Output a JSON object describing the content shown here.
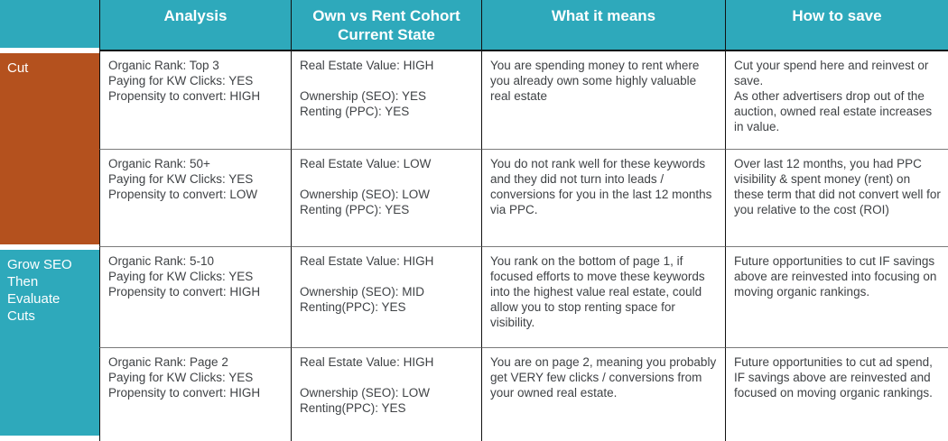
{
  "colors": {
    "header_teal": "#2ea9bb",
    "group_orange": "#b4511e",
    "group_teal": "#2ea9bb",
    "header_text": "#ffffff",
    "body_text": "#3f4245",
    "border_dark": "#111111",
    "border_gray": "#7a7a7a"
  },
  "table": {
    "headers": [
      "Analysis",
      "Own vs Rent Cohort Current State",
      "What it means",
      "How to save"
    ],
    "row_groups": [
      {
        "label": "Cut"
      },
      {
        "label": "Grow SEO\nThen\nEvaluate\nCuts"
      }
    ],
    "rows": [
      {
        "analysis": "Organic Rank: Top 3\nPaying for KW Clicks: YES\nPropensity to convert: HIGH",
        "own_vs_rent": "Real Estate Value: HIGH\n\nOwnership (SEO): YES\nRenting (PPC): YES",
        "what_it_means": "You are spending money to rent where you already own some highly valuable real estate",
        "how_to_save": "Cut your spend here and reinvest or save.\nAs other advertisers drop out of the auction, owned real estate increases in value."
      },
      {
        "analysis": "Organic Rank: 50+\nPaying for KW Clicks: YES\nPropensity to convert: LOW",
        "own_vs_rent": "Real Estate Value: LOW\n\nOwnership (SEO): LOW\nRenting (PPC): YES",
        "what_it_means": "You do not rank well for these keywords and they did not turn into leads / conversions for you in the last 12 months via PPC.",
        "how_to_save": "Over last 12 months, you had PPC visibility & spent money (rent) on these term that did not convert well for you relative to the cost (ROI)"
      },
      {
        "analysis": "Organic Rank: 5-10\nPaying for KW Clicks: YES\nPropensity to convert: HIGH",
        "own_vs_rent": "Real Estate Value: HIGH\n\nOwnership (SEO): MID\nRenting(PPC): YES",
        "what_it_means": "You rank on the bottom of page 1, if focused efforts to move these keywords into the highest value real estate, could allow you to stop renting space for visibility.",
        "how_to_save": "Future opportunities to cut IF savings above are reinvested into focusing on moving organic rankings."
      },
      {
        "analysis": "Organic Rank: Page 2\nPaying for KW Clicks: YES\nPropensity to convert: HIGH",
        "own_vs_rent": "Real Estate Value: HIGH\n\nOwnership (SEO): LOW\nRenting(PPC): YES",
        "what_it_means": "You are on page 2, meaning you probably get VERY few clicks / conversions from your owned real estate.",
        "how_to_save": "Future opportunities to cut ad spend, IF savings above are reinvested and focused on moving organic rankings."
      }
    ]
  }
}
